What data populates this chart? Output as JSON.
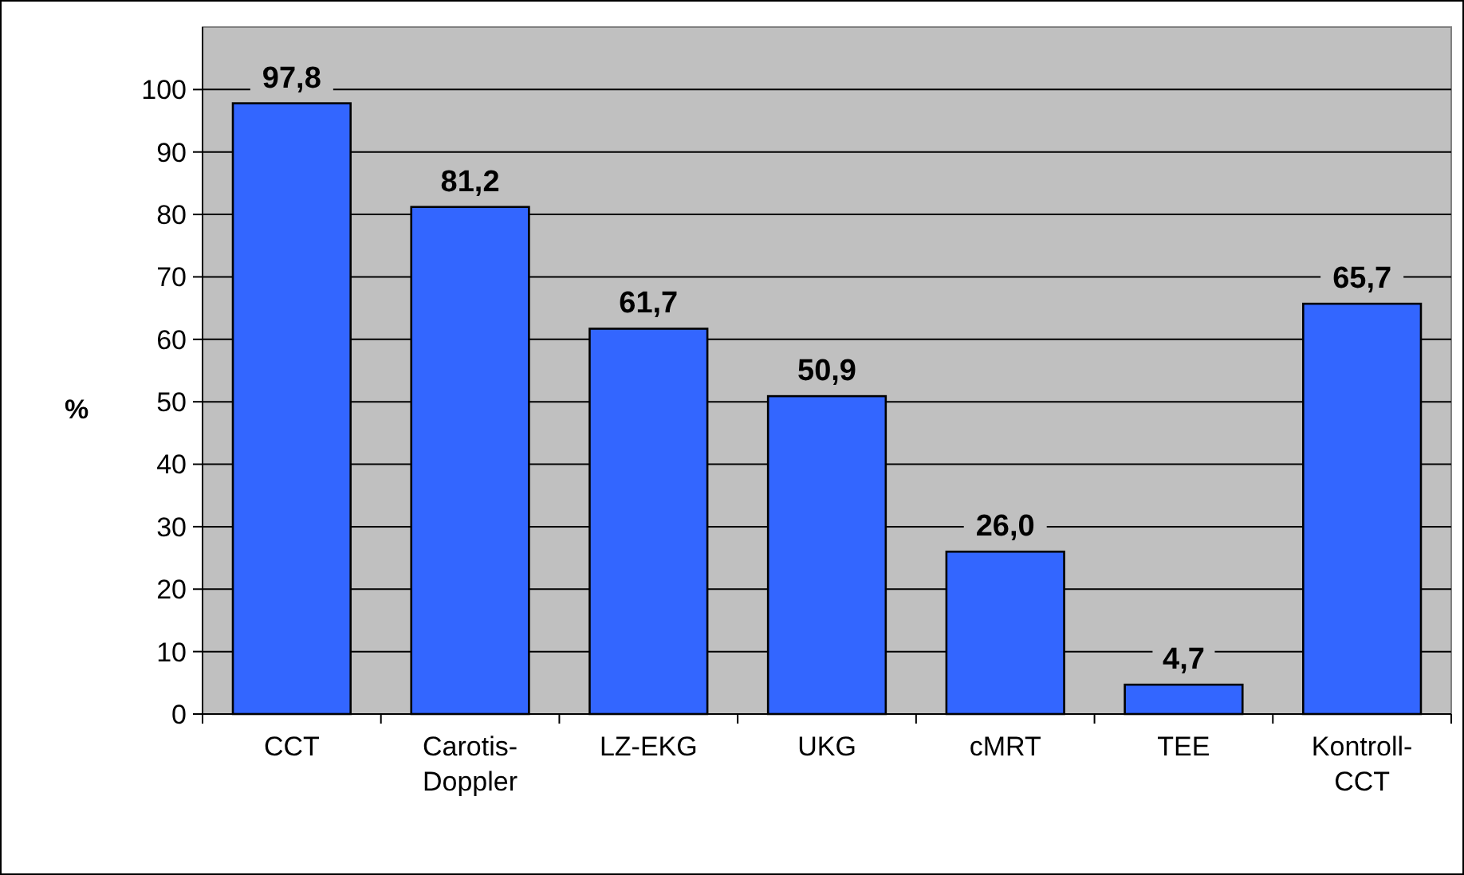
{
  "chart_data": {
    "type": "bar",
    "ylabel": "%",
    "categories": [
      "CCT",
      "Carotis-\nDoppler",
      "LZ-EKG",
      "UKG",
      "cMRT",
      "TEE",
      "Kontroll-\nCCT"
    ],
    "values": [
      97.8,
      81.2,
      61.7,
      50.9,
      26.0,
      4.7,
      65.7
    ],
    "value_labels": [
      "97,8",
      "81,2",
      "61,7",
      "50,9",
      "26,0",
      "4,7",
      "65,7"
    ],
    "color": "#3366ff",
    "ylim": [
      0,
      110
    ],
    "yticks": [
      0,
      10,
      20,
      30,
      40,
      50,
      60,
      70,
      80,
      90,
      100
    ],
    "grid": "y"
  }
}
